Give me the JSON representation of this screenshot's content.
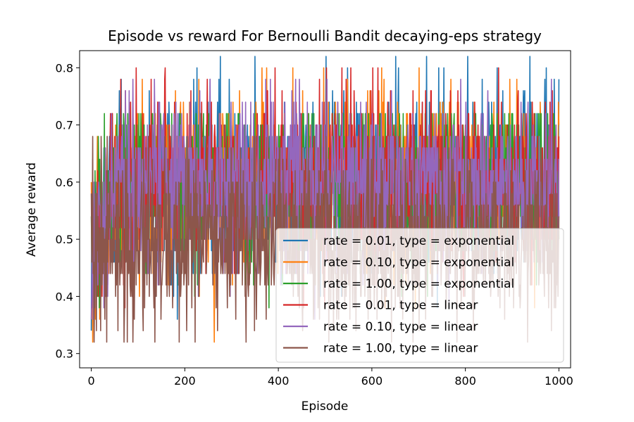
{
  "chart_data": {
    "type": "line",
    "title": "Episode vs reward For Bernoulli Bandit decaying-eps strategy",
    "xlabel": "Episode",
    "ylabel": "Average reward",
    "xlim": [
      -25,
      1025
    ],
    "ylim": [
      0.275,
      0.83
    ],
    "xticks": [
      0,
      200,
      400,
      600,
      800,
      1000
    ],
    "yticks": [
      0.3,
      0.4,
      0.5,
      0.6,
      0.7,
      0.8
    ],
    "grid": false,
    "legend_position": "lower-right",
    "x": [
      0,
      1000
    ],
    "series": [
      {
        "name": "rate = 0.01, type = exponential",
        "color": "#1f77b4",
        "mean": 0.6,
        "min": 0.34,
        "max": 0.82,
        "peaks": [
          [
            350,
            0.82
          ],
          [
            502,
            0.82
          ],
          [
            717,
            0.82
          ],
          [
            548,
            0.8
          ],
          [
            743,
            0.8
          ],
          [
            754,
            0.8
          ],
          [
            990,
            0.78
          ],
          [
            1000,
            0.78
          ],
          [
            970,
            0.78
          ],
          [
            219,
            0.78
          ],
          [
            295,
            0.78
          ]
        ]
      },
      {
        "name": "rate = 0.10, type = exponential",
        "color": "#ff7f0e",
        "mean": 0.6,
        "min": 0.32,
        "max": 0.8,
        "peaks": [
          [
            3,
            0.32
          ],
          [
            365,
            0.8
          ],
          [
            375,
            0.8
          ],
          [
            895,
            0.78
          ]
        ]
      },
      {
        "name": "rate = 1.00, type = exponential",
        "color": "#2ca02c",
        "mean": 0.6,
        "min": 0.38,
        "max": 0.72,
        "peaks": [
          [
            45,
            0.72
          ],
          [
            55,
            0.72
          ]
        ]
      },
      {
        "name": "rate = 0.01, type = linear",
        "color": "#d62728",
        "mean": 0.6,
        "min": 0.38,
        "max": 0.8,
        "peaks": [
          [
            128,
            0.78
          ],
          [
            248,
            0.78
          ],
          [
            555,
            0.8
          ],
          [
            545,
            0.78
          ]
        ]
      },
      {
        "name": "rate = 0.10, type = linear",
        "color": "#9467bd",
        "mean": 0.6,
        "min": 0.36,
        "max": 0.78,
        "peaks": [
          [
            0,
            0.36
          ],
          [
            445,
            0.78
          ]
        ]
      },
      {
        "name": "rate = 1.00, type = linear",
        "color": "#8c564b",
        "mean": 0.5,
        "min": 0.32,
        "max": 0.68,
        "peaks": [
          [
            222,
            0.32
          ],
          [
            270,
            0.34
          ],
          [
            984,
            0.34
          ]
        ]
      }
    ]
  }
}
